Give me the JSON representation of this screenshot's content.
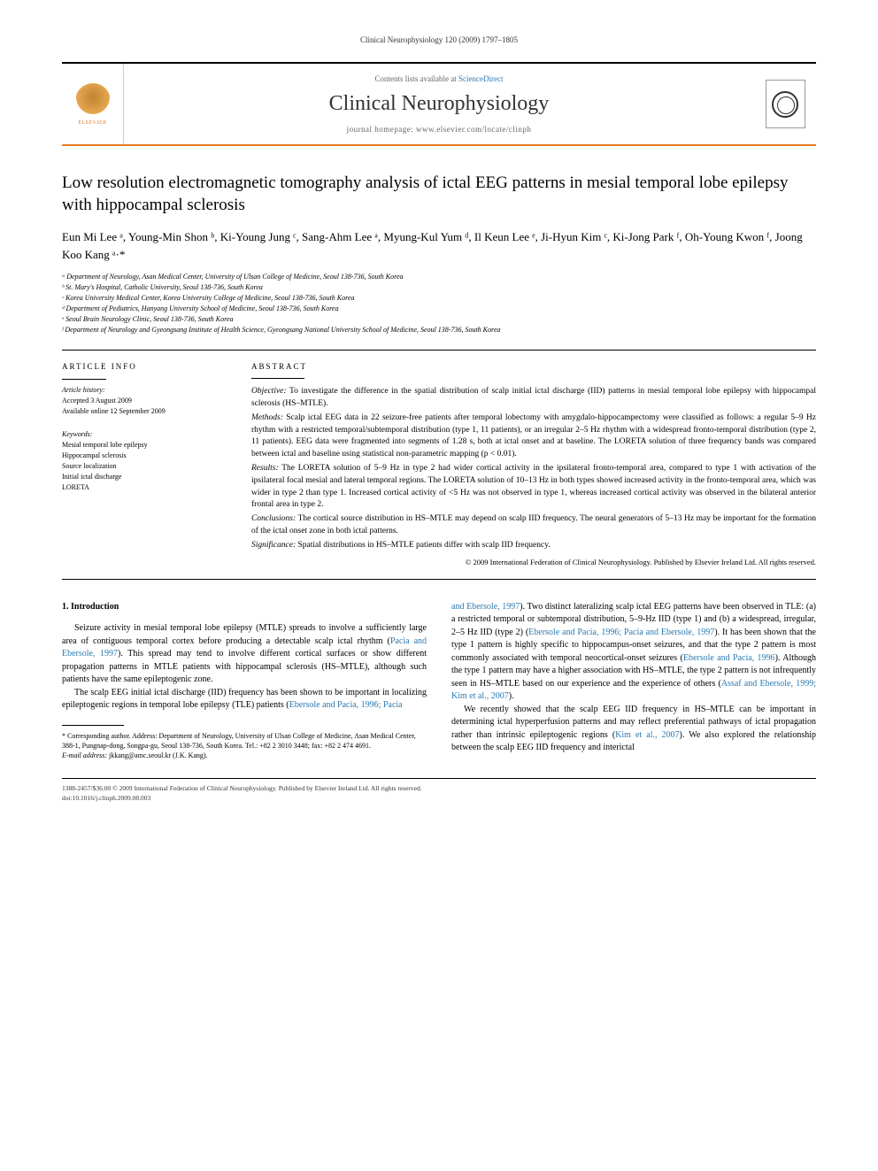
{
  "running_head": "Clinical Neurophysiology 120 (2009) 1797–1805",
  "header": {
    "contents_prefix": "Contents lists available at",
    "contents_link": "ScienceDirect",
    "journal_title": "Clinical Neurophysiology",
    "homepage_prefix": "journal homepage:",
    "homepage_url": "www.elsevier.com/locate/clinph",
    "publisher_name": "ELSEVIER"
  },
  "article": {
    "title": "Low resolution electromagnetic tomography analysis of ictal EEG patterns in mesial temporal lobe epilepsy with hippocampal sclerosis",
    "authors_html": "Eun Mi Lee ᵃ, Young-Min Shon ᵇ, Ki-Young Jung ᶜ, Sang-Ahm Lee ᵃ, Myung-Kul Yum ᵈ, Il Keun Lee ᵉ, Ji-Hyun Kim ᶜ, Ki-Jong Park ᶠ, Oh-Young Kwon ᶠ, Joong Koo Kang ᵃ·*",
    "affiliations": [
      "ᵃ Department of Neurology, Asan Medical Center, University of Ulsan College of Medicine, Seoul 138-736, South Korea",
      "ᵇ St. Mary's Hospital, Catholic University, Seoul 138-736, South Korea",
      "ᶜ Korea University Medical Center, Korea University College of Medicine, Seoul 138-736, South Korea",
      "ᵈ Department of Pediatrics, Hanyang University School of Medicine, Seoul 138-736, South Korea",
      "ᵉ Seoul Brain Neurology Clinic, Seoul 138-736, South Korea",
      "ᶠ Department of Neurology and Gyeongsang Institute of Health Science, Gyeongsang National University School of Medicine, Seoul 138-736, South Korea"
    ]
  },
  "info": {
    "heading": "article info",
    "history_label": "Article history:",
    "accepted": "Accepted 3 August 2009",
    "online": "Available online 12 September 2009",
    "keywords_label": "Keywords:",
    "keywords": [
      "Mesial temporal lobe epilepsy",
      "Hippocampal sclerosis",
      "Source localization",
      "Initial ictal discharge",
      "LORETA"
    ]
  },
  "abstract": {
    "heading": "abstract",
    "objective_label": "Objective:",
    "objective": "To investigate the difference in the spatial distribution of scalp initial ictal discharge (IID) patterns in mesial temporal lobe epilepsy with hippocampal sclerosis (HS–MTLE).",
    "methods_label": "Methods:",
    "methods": "Scalp ictal EEG data in 22 seizure-free patients after temporal lobectomy with amygdalo-hippocampectomy were classified as follows: a regular 5–9 Hz rhythm with a restricted temporal/subtemporal distribution (type 1, 11 patients), or an irregular 2–5 Hz rhythm with a widespread fronto-temporal distribution (type 2, 11 patients). EEG data were fragmented into segments of 1.28 s, both at ictal onset and at baseline. The LORETA solution of three frequency bands was compared between ictal and baseline using statistical non-parametric mapping (p < 0.01).",
    "results_label": "Results:",
    "results": "The LORETA solution of 5–9 Hz in type 2 had wider cortical activity in the ipsilateral fronto-temporal area, compared to type 1 with activation of the ipsilateral focal mesial and lateral temporal regions. The LORETA solution of 10–13 Hz in both types showed increased activity in the fronto-temporal area, which was wider in type 2 than type 1. Increased cortical activity of <5 Hz was not observed in type 1, whereas increased cortical activity was observed in the bilateral anterior frontal area in type 2.",
    "conclusions_label": "Conclusions:",
    "conclusions": "The cortical source distribution in HS–MTLE may depend on scalp IID frequency. The neural generators of 5–13 Hz may be important for the formation of the ictal onset zone in both ictal patterns.",
    "significance_label": "Significance:",
    "significance": "Spatial distributions in HS–MTLE patients differ with scalp IID frequency.",
    "copyright": "© 2009 International Federation of Clinical Neurophysiology. Published by Elsevier Ireland Ltd. All rights reserved."
  },
  "body": {
    "section_heading": "1. Introduction",
    "col1_p1a": "Seizure activity in mesial temporal lobe epilepsy (MTLE) spreads to involve a sufficiently large area of contiguous temporal cortex before producing a detectable scalp ictal rhythm (",
    "col1_ref1": "Pacia and Ebersole, 1997",
    "col1_p1b": "). This spread may tend to involve different cortical surfaces or show different propagation patterns in MTLE patients with hippocampal sclerosis (HS–MTLE), although such patients have the same epileptogenic zone.",
    "col1_p2a": "The scalp EEG initial ictal discharge (IID) frequency has been shown to be important in localizing epileptogenic regions in temporal lobe epilepsy (TLE) patients (",
    "col1_ref2": "Ebersole and Pacia, 1996; Pacia",
    "col2_ref_cont": "and Ebersole, 1997",
    "col2_p1a": "). Two distinct lateralizing scalp ictal EEG patterns have been observed in TLE: (a) a restricted temporal or subtemporal distribution, 5–9-Hz IID (type 1) and (b) a widespread, irregular, 2–5 Hz IID (type 2) (",
    "col2_ref2": "Ebersole and Pacia, 1996; Pacia and Ebersole, 1997",
    "col2_p1b": "). It has been shown that the type 1 pattern is highly specific to hippocampus-onset seizures, and that the type 2 pattern is most commonly associated with temporal neocortical-onset seizures (",
    "col2_ref3": "Ebersole and Pacia, 1996",
    "col2_p1c": "). Although the type 1 pattern may have a higher association with HS–MTLE, the type 2 pattern is not infrequently seen in HS–MTLE based on our experience and the experience of others (",
    "col2_ref4": "Assaf and Ebersole, 1999; Kim et al., 2007",
    "col2_p1d": ").",
    "col2_p2a": "We recently showed that the scalp EEG IID frequency in HS–MTLE can be important in determining ictal hyperperfusion patterns and may reflect preferential pathways of ictal propagation rather than intrinsic epileptogenic regions (",
    "col2_ref5": "Kim et al., 2007",
    "col2_p2b": "). We also explored the relationship between the scalp EEG IID frequency and interictal"
  },
  "footnotes": {
    "corr_label": "* Corresponding author.",
    "corr_text": "Address: Department of Neurology, University of Ulsan College of Medicine, Asan Medical Center, 388-1, Pungnap-dong, Songpa-gu, Seoul 138-736, South Korea. Tel.: +82 2 3010 3448; fax: +82 2 474 4691.",
    "email_label": "E-mail address:",
    "email": "jkkang@amc.seoul.kr",
    "email_who": "(J.K. Kang)."
  },
  "footer": {
    "line1": "1388-2457/$36.00 © 2009 International Federation of Clinical Neurophysiology. Published by Elsevier Ireland Ltd. All rights reserved.",
    "line2": "doi:10.1016/j.clinph.2009.08.003"
  },
  "colors": {
    "accent": "#e67e22",
    "link": "#2a7ab0",
    "text": "#000000",
    "muted": "#666666"
  }
}
